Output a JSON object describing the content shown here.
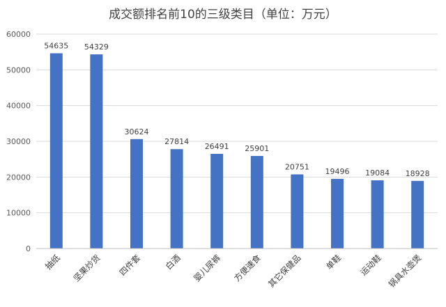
{
  "chart_data": {
    "type": "bar",
    "title": "成交额排名前10的三级类目（单位：万元）",
    "xlabel": "",
    "ylabel": "",
    "categories": [
      "抽纸",
      "坚果炒货",
      "四件套",
      "白酒",
      "婴儿尿裤",
      "方便速食",
      "其它保健品",
      "单鞋",
      "运动鞋",
      "锅具水壶煲"
    ],
    "values": [
      54635,
      54329,
      30624,
      27814,
      26491,
      25901,
      20751,
      19496,
      19084,
      18928
    ],
    "ylim": [
      0,
      60000
    ],
    "yticks": [
      "0",
      "10000",
      "20000",
      "30000",
      "40000",
      "50000",
      "60000"
    ],
    "grid": true,
    "legend": "none",
    "colors": {
      "bar": "#4472C4",
      "grid": "#D9D9D9",
      "axis": "#BFBFBF"
    }
  }
}
